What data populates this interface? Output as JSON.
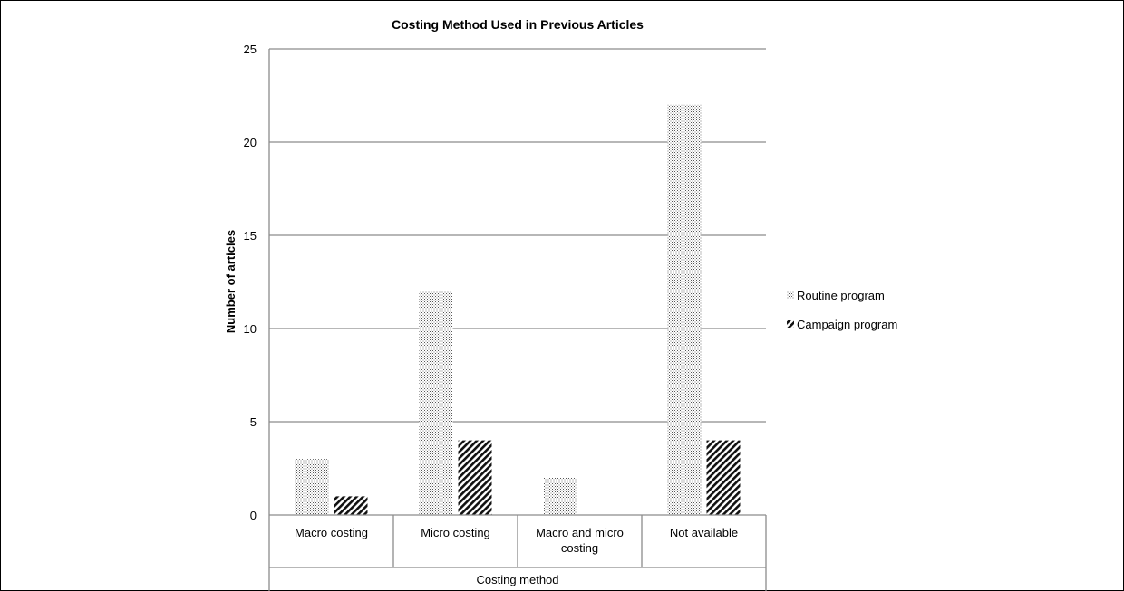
{
  "chart_data": {
    "type": "bar",
    "title": "Costing Method Used in Previous Articles",
    "xlabel": "Costing method",
    "ylabel": "Number of articles",
    "categories": [
      [
        "Macro costing"
      ],
      [
        "Micro costing"
      ],
      [
        "Macro and micro",
        "costing"
      ],
      [
        "Not available"
      ]
    ],
    "series": [
      {
        "name": "Routine program",
        "values": [
          3,
          12,
          2,
          22
        ],
        "pattern": "dots"
      },
      {
        "name": "Campaign program",
        "values": [
          1,
          4,
          0,
          4
        ],
        "pattern": "diagonal-stripes"
      }
    ],
    "ylim": [
      0,
      25
    ],
    "yticks": [
      0,
      5,
      10,
      15,
      20,
      25
    ],
    "grid": true,
    "legend_position": "right"
  }
}
